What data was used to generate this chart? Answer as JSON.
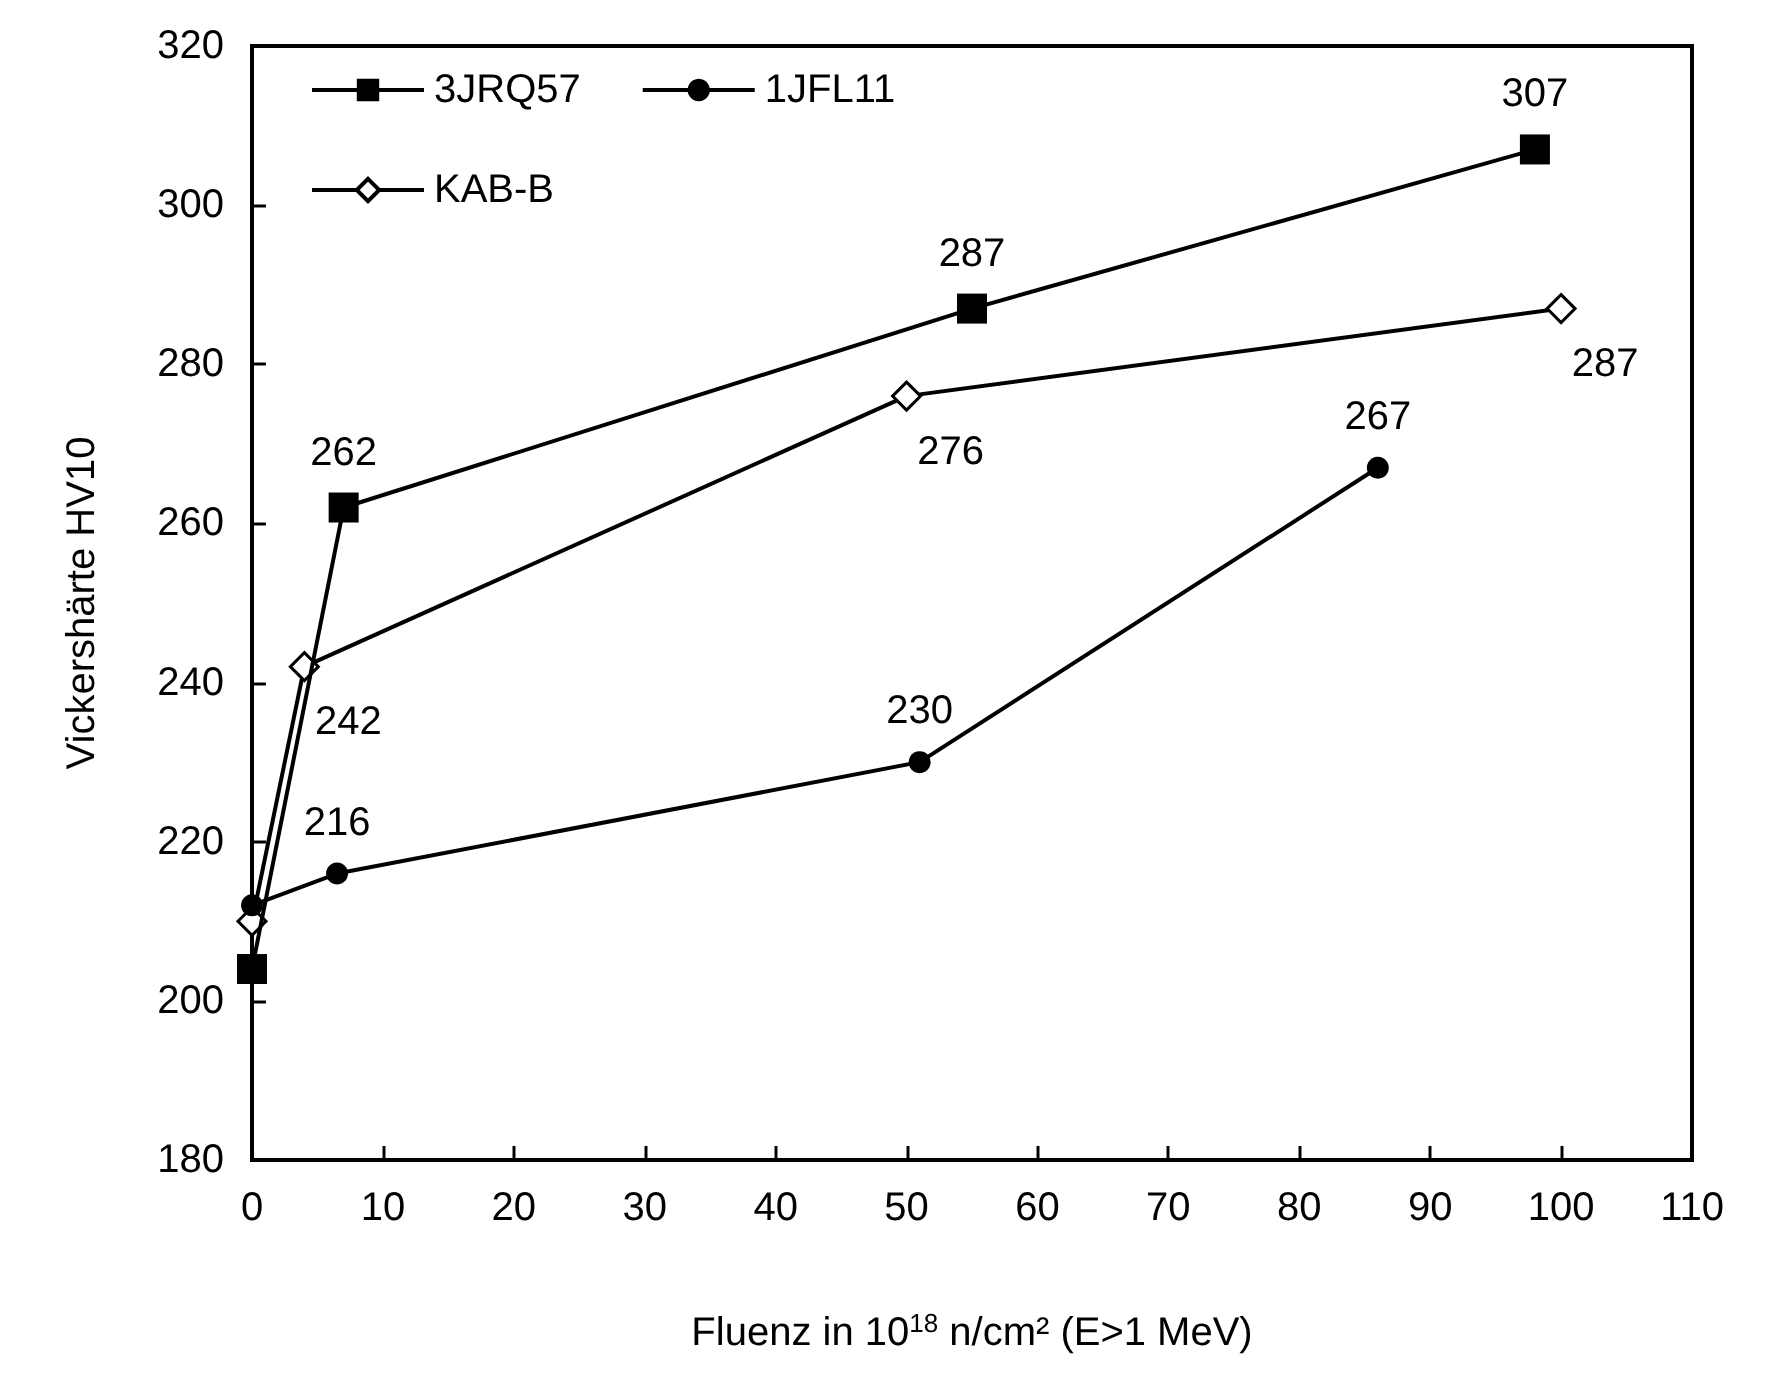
{
  "chart_data": {
    "type": "line",
    "xlabel": "Fluenz in 10$^{18}$ n/cm² (E>1 MeV)",
    "ylabel": "Vickershärte HV10",
    "xlim": [
      0,
      110
    ],
    "xticks": [
      0,
      10,
      20,
      30,
      40,
      50,
      60,
      70,
      80,
      90,
      100,
      110
    ],
    "ylim": [
      180,
      320
    ],
    "yticks": [
      180,
      200,
      220,
      240,
      260,
      280,
      300,
      320
    ],
    "grid": false,
    "legend": "top left",
    "line_style": "solid",
    "series": [
      {
        "name": "3JRQ57",
        "color": "#000000",
        "marker": "square",
        "x": [
          0,
          7,
          55,
          98
        ],
        "values": [
          204,
          262,
          287,
          307
        ],
        "value_labels": [
          null,
          "262",
          "287",
          "307"
        ]
      },
      {
        "name": "1JFL11",
        "color": "#000000",
        "marker": "circle",
        "x": [
          0,
          6.5,
          51,
          86
        ],
        "values": [
          212,
          216,
          230,
          267
        ],
        "value_labels": [
          null,
          "216",
          "230",
          "267"
        ]
      },
      {
        "name": "KAB-B",
        "color": "#000000",
        "marker": "diamond",
        "x": [
          0,
          4,
          50,
          100
        ],
        "values": [
          210,
          242,
          276,
          287
        ],
        "value_labels": [
          null,
          "242",
          "276",
          "287"
        ]
      }
    ]
  }
}
